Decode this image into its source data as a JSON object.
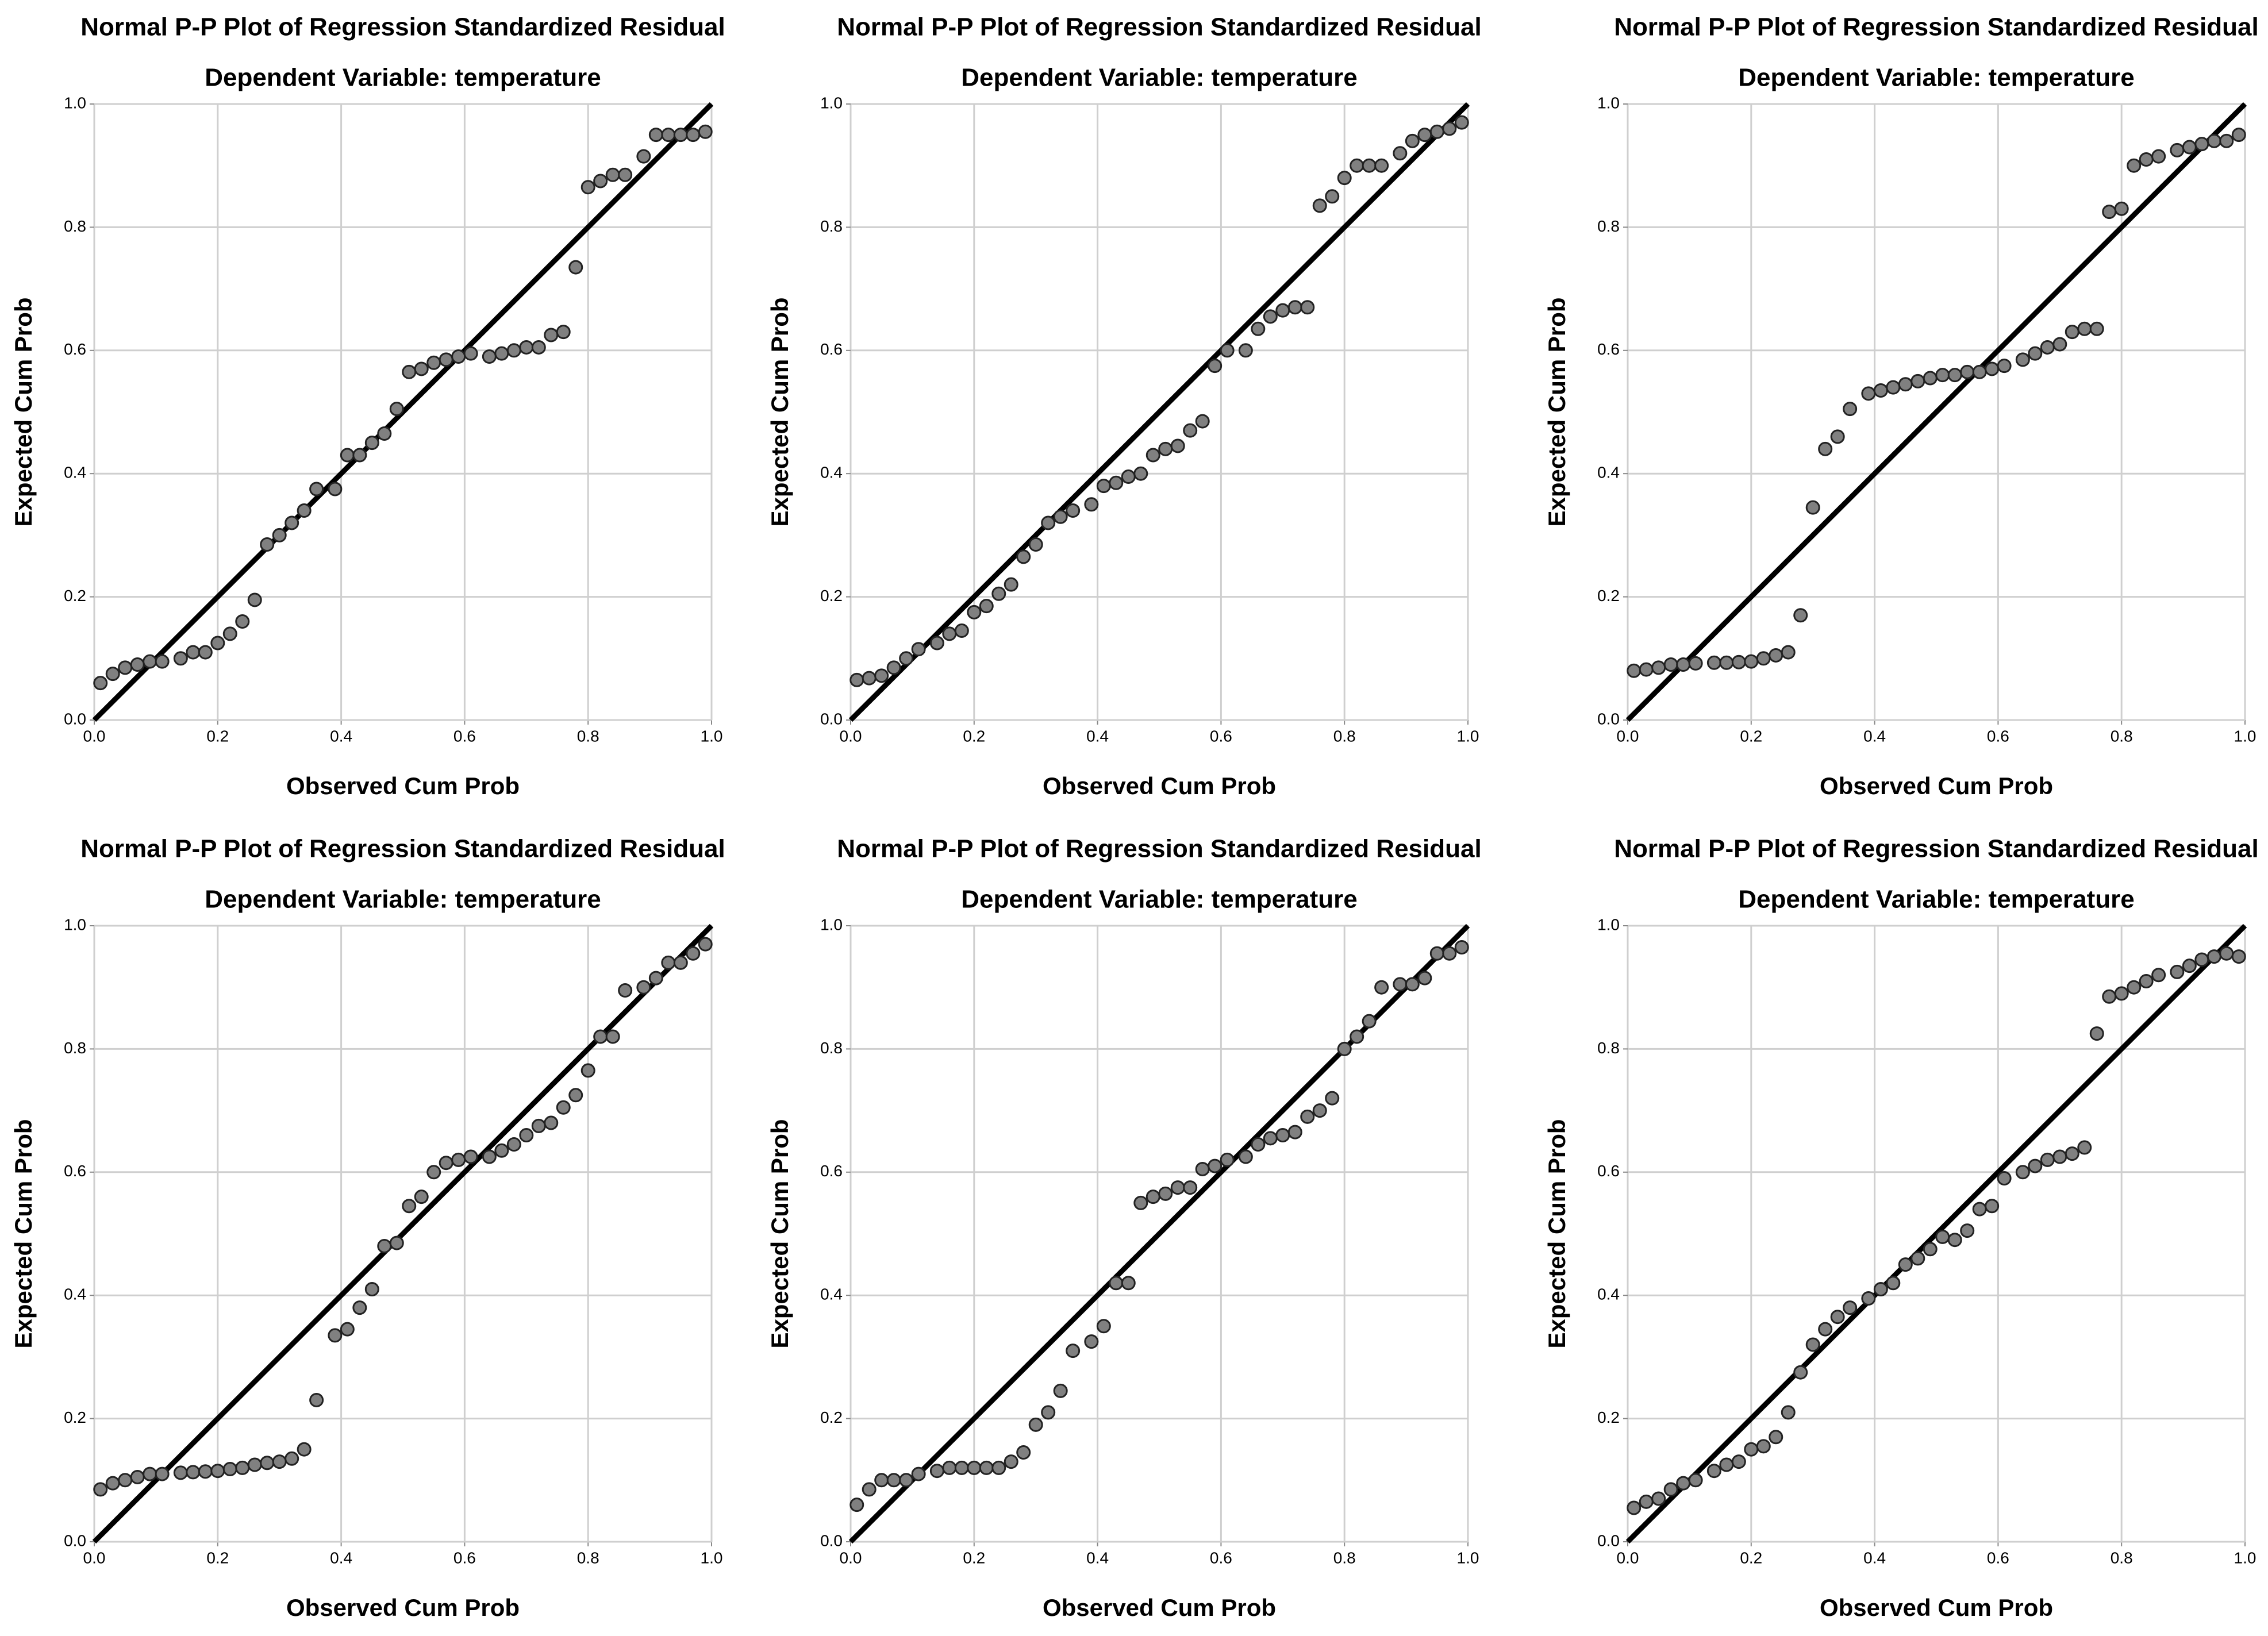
{
  "chart_data": [
    {
      "type": "scatter",
      "title": "Normal P-P Plot of Regression Standardized Residual",
      "subtitle": "Dependent Variable: temperature",
      "x_label": "Observed Cum Prob",
      "y_label": "Expected Cum Prob",
      "color": "#808080",
      "grid": true,
      "xlim": [
        0,
        1
      ],
      "ylim": [
        0,
        1
      ],
      "xticks": [
        {
          "value": 0,
          "label": "0.0"
        },
        0.2,
        0.4,
        0.6,
        0.8,
        {
          "value": 1,
          "label": "1.0"
        }
      ],
      "yticks": [
        {
          "value": 0,
          "label": "0.0"
        },
        0.2,
        0.4,
        0.6,
        0.8,
        {
          "value": 1,
          "label": "1.0"
        }
      ],
      "x": [
        0.01,
        0.03,
        0.05,
        0.07,
        0.09,
        0.11,
        0.14,
        0.16,
        0.18,
        0.2,
        0.22,
        0.24,
        0.26,
        0.28,
        0.3,
        0.32,
        0.34,
        0.36,
        0.39,
        0.41,
        0.43,
        0.45,
        0.47,
        0.49,
        0.51,
        0.53,
        0.55,
        0.57,
        0.59,
        0.61,
        0.64,
        0.66,
        0.68,
        0.7,
        0.72,
        0.74,
        0.76,
        0.78,
        0.8,
        0.82,
        0.84,
        0.86,
        0.89,
        0.91,
        0.93,
        0.95,
        0.97,
        0.99
      ],
      "values": [
        0.06,
        0.075,
        0.085,
        0.09,
        0.095,
        0.095,
        0.1,
        0.11,
        0.11,
        0.125,
        0.14,
        0.16,
        0.195,
        0.285,
        0.3,
        0.32,
        0.34,
        0.375,
        0.375,
        0.43,
        0.43,
        0.45,
        0.465,
        0.505,
        0.565,
        0.57,
        0.58,
        0.585,
        0.59,
        0.595,
        0.59,
        0.595,
        0.6,
        0.605,
        0.605,
        0.625,
        0.63,
        0.735,
        0.865,
        0.875,
        0.885,
        0.885,
        0.915,
        0.95,
        0.95,
        0.95,
        0.95,
        0.955
      ]
    },
    {
      "type": "scatter",
      "title": "Normal P-P Plot of Regression Standardized Residual",
      "subtitle": "Dependent Variable: temperature",
      "x_label": "Observed Cum Prob",
      "y_label": "Expected Cum Prob",
      "color": "#808080",
      "grid": true,
      "xlim": [
        0,
        1
      ],
      "ylim": [
        0,
        1
      ],
      "xticks": [
        {
          "value": 0,
          "label": "0.0"
        },
        0.2,
        0.4,
        0.6,
        0.8,
        {
          "value": 1,
          "label": "1.0"
        }
      ],
      "yticks": [
        {
          "value": 0,
          "label": "0.0"
        },
        0.2,
        0.4,
        0.6,
        0.8,
        {
          "value": 1,
          "label": "1.0"
        }
      ],
      "x": [
        0.01,
        0.03,
        0.05,
        0.07,
        0.09,
        0.11,
        0.14,
        0.16,
        0.18,
        0.2,
        0.22,
        0.24,
        0.26,
        0.28,
        0.3,
        0.32,
        0.34,
        0.36,
        0.39,
        0.41,
        0.43,
        0.45,
        0.47,
        0.49,
        0.51,
        0.53,
        0.55,
        0.57,
        0.59,
        0.61,
        0.64,
        0.66,
        0.68,
        0.7,
        0.72,
        0.74,
        0.76,
        0.78,
        0.8,
        0.82,
        0.84,
        0.86,
        0.89,
        0.91,
        0.93,
        0.95,
        0.97,
        0.99
      ],
      "values": [
        0.065,
        0.068,
        0.072,
        0.085,
        0.1,
        0.115,
        0.125,
        0.14,
        0.145,
        0.175,
        0.185,
        0.205,
        0.22,
        0.265,
        0.285,
        0.32,
        0.33,
        0.34,
        0.35,
        0.38,
        0.385,
        0.395,
        0.4,
        0.43,
        0.44,
        0.445,
        0.47,
        0.485,
        0.575,
        0.6,
        0.6,
        0.635,
        0.655,
        0.665,
        0.67,
        0.67,
        0.835,
        0.85,
        0.88,
        0.9,
        0.9,
        0.9,
        0.92,
        0.94,
        0.95,
        0.955,
        0.96,
        0.97
      ]
    },
    {
      "type": "scatter",
      "title": "Normal P-P Plot of Regression Standardized Residual",
      "subtitle": "Dependent Variable: temperature",
      "x_label": "Observed Cum Prob",
      "y_label": "Expected Cum Prob",
      "color": "#808080",
      "grid": true,
      "xlim": [
        0,
        1
      ],
      "ylim": [
        0,
        1
      ],
      "xticks": [
        {
          "value": 0,
          "label": "0.0"
        },
        0.2,
        0.4,
        0.6,
        0.8,
        {
          "value": 1,
          "label": "1.0"
        }
      ],
      "yticks": [
        {
          "value": 0,
          "label": "0.0"
        },
        0.2,
        0.4,
        0.6,
        0.8,
        {
          "value": 1,
          "label": "1.0"
        }
      ],
      "x": [
        0.01,
        0.03,
        0.05,
        0.07,
        0.09,
        0.11,
        0.14,
        0.16,
        0.18,
        0.2,
        0.22,
        0.24,
        0.26,
        0.28,
        0.3,
        0.32,
        0.34,
        0.36,
        0.39,
        0.41,
        0.43,
        0.45,
        0.47,
        0.49,
        0.51,
        0.53,
        0.55,
        0.57,
        0.59,
        0.61,
        0.64,
        0.66,
        0.68,
        0.7,
        0.72,
        0.74,
        0.76,
        0.78,
        0.8,
        0.82,
        0.84,
        0.86,
        0.89,
        0.91,
        0.93,
        0.95,
        0.97,
        0.99
      ],
      "values": [
        0.08,
        0.082,
        0.085,
        0.09,
        0.09,
        0.092,
        0.093,
        0.093,
        0.094,
        0.095,
        0.1,
        0.105,
        0.11,
        0.17,
        0.345,
        0.44,
        0.46,
        0.505,
        0.53,
        0.535,
        0.54,
        0.545,
        0.55,
        0.555,
        0.56,
        0.56,
        0.565,
        0.565,
        0.57,
        0.575,
        0.585,
        0.595,
        0.605,
        0.61,
        0.63,
        0.635,
        0.635,
        0.825,
        0.83,
        0.9,
        0.91,
        0.915,
        0.925,
        0.93,
        0.935,
        0.94,
        0.94,
        0.95
      ]
    },
    {
      "type": "scatter",
      "title": "Normal P-P Plot of Regression Standardized Residual",
      "subtitle": "Dependent Variable: temperature",
      "x_label": "Observed Cum Prob",
      "y_label": "Expected Cum Prob",
      "color": "#808080",
      "grid": true,
      "xlim": [
        0,
        1
      ],
      "ylim": [
        0,
        1
      ],
      "xticks": [
        {
          "value": 0,
          "label": "0.0"
        },
        0.2,
        0.4,
        0.6,
        0.8,
        {
          "value": 1,
          "label": "1.0"
        }
      ],
      "yticks": [
        {
          "value": 0,
          "label": "0.0"
        },
        0.2,
        0.4,
        0.6,
        0.8,
        {
          "value": 1,
          "label": "1.0"
        }
      ],
      "x": [
        0.01,
        0.03,
        0.05,
        0.07,
        0.09,
        0.11,
        0.14,
        0.16,
        0.18,
        0.2,
        0.22,
        0.24,
        0.26,
        0.28,
        0.3,
        0.32,
        0.34,
        0.36,
        0.39,
        0.41,
        0.43,
        0.45,
        0.47,
        0.49,
        0.51,
        0.53,
        0.55,
        0.57,
        0.59,
        0.61,
        0.64,
        0.66,
        0.68,
        0.7,
        0.72,
        0.74,
        0.76,
        0.78,
        0.8,
        0.82,
        0.84,
        0.86,
        0.89,
        0.91,
        0.93,
        0.95,
        0.97,
        0.99
      ],
      "values": [
        0.085,
        0.095,
        0.1,
        0.105,
        0.11,
        0.11,
        0.112,
        0.113,
        0.114,
        0.115,
        0.118,
        0.12,
        0.125,
        0.128,
        0.13,
        0.135,
        0.15,
        0.23,
        0.335,
        0.345,
        0.38,
        0.41,
        0.48,
        0.485,
        0.545,
        0.56,
        0.6,
        0.615,
        0.62,
        0.625,
        0.625,
        0.635,
        0.645,
        0.66,
        0.675,
        0.68,
        0.705,
        0.725,
        0.765,
        0.82,
        0.82,
        0.895,
        0.9,
        0.915,
        0.94,
        0.94,
        0.955,
        0.97
      ]
    },
    {
      "type": "scatter",
      "title": "Normal P-P Plot of Regression Standardized Residual",
      "subtitle": "Dependent Variable: temperature",
      "x_label": "Observed Cum Prob",
      "y_label": "Expected Cum Prob",
      "color": "#808080",
      "grid": true,
      "xlim": [
        0,
        1
      ],
      "ylim": [
        0,
        1
      ],
      "xticks": [
        {
          "value": 0,
          "label": "0.0"
        },
        0.2,
        0.4,
        0.6,
        0.8,
        {
          "value": 1,
          "label": "1.0"
        }
      ],
      "yticks": [
        {
          "value": 0,
          "label": "0.0"
        },
        0.2,
        0.4,
        0.6,
        0.8,
        {
          "value": 1,
          "label": "1.0"
        }
      ],
      "x": [
        0.01,
        0.03,
        0.05,
        0.07,
        0.09,
        0.11,
        0.14,
        0.16,
        0.18,
        0.2,
        0.22,
        0.24,
        0.26,
        0.28,
        0.3,
        0.32,
        0.34,
        0.36,
        0.39,
        0.41,
        0.43,
        0.45,
        0.47,
        0.49,
        0.51,
        0.53,
        0.55,
        0.57,
        0.59,
        0.61,
        0.64,
        0.66,
        0.68,
        0.7,
        0.72,
        0.74,
        0.76,
        0.78,
        0.8,
        0.82,
        0.84,
        0.86,
        0.89,
        0.91,
        0.93,
        0.95,
        0.97,
        0.99
      ],
      "values": [
        0.06,
        0.085,
        0.1,
        0.1,
        0.1,
        0.11,
        0.115,
        0.12,
        0.12,
        0.12,
        0.12,
        0.12,
        0.13,
        0.145,
        0.19,
        0.21,
        0.245,
        0.31,
        0.325,
        0.35,
        0.42,
        0.42,
        0.55,
        0.56,
        0.565,
        0.575,
        0.575,
        0.605,
        0.61,
        0.62,
        0.625,
        0.645,
        0.655,
        0.66,
        0.665,
        0.69,
        0.7,
        0.72,
        0.8,
        0.82,
        0.845,
        0.9,
        0.905,
        0.905,
        0.915,
        0.955,
        0.955,
        0.965
      ]
    },
    {
      "type": "scatter",
      "title": "Normal P-P Plot of Regression Standardized Residual",
      "subtitle": "Dependent Variable: temperature",
      "x_label": "Observed Cum Prob",
      "y_label": "Expected Cum Prob",
      "color": "#808080",
      "grid": true,
      "xlim": [
        0,
        1
      ],
      "ylim": [
        0,
        1
      ],
      "xticks": [
        {
          "value": 0,
          "label": "0.0"
        },
        0.2,
        0.4,
        0.6,
        0.8,
        {
          "value": 1,
          "label": "1.0"
        }
      ],
      "yticks": [
        {
          "value": 0,
          "label": "0.0"
        },
        0.2,
        0.4,
        0.6,
        0.8,
        {
          "value": 1,
          "label": "1.0"
        }
      ],
      "x": [
        0.01,
        0.03,
        0.05,
        0.07,
        0.09,
        0.11,
        0.14,
        0.16,
        0.18,
        0.2,
        0.22,
        0.24,
        0.26,
        0.28,
        0.3,
        0.32,
        0.34,
        0.36,
        0.39,
        0.41,
        0.43,
        0.45,
        0.47,
        0.49,
        0.51,
        0.53,
        0.55,
        0.57,
        0.59,
        0.61,
        0.64,
        0.66,
        0.68,
        0.7,
        0.72,
        0.74,
        0.76,
        0.78,
        0.8,
        0.82,
        0.84,
        0.86,
        0.89,
        0.91,
        0.93,
        0.95,
        0.97,
        0.99
      ],
      "values": [
        0.055,
        0.065,
        0.07,
        0.085,
        0.095,
        0.1,
        0.115,
        0.125,
        0.13,
        0.15,
        0.155,
        0.17,
        0.21,
        0.275,
        0.32,
        0.345,
        0.365,
        0.38,
        0.395,
        0.41,
        0.42,
        0.45,
        0.46,
        0.475,
        0.495,
        0.49,
        0.505,
        0.54,
        0.545,
        0.59,
        0.6,
        0.61,
        0.62,
        0.625,
        0.63,
        0.64,
        0.825,
        0.885,
        0.89,
        0.9,
        0.91,
        0.92,
        0.925,
        0.935,
        0.945,
        0.95,
        0.955,
        0.95
      ]
    }
  ]
}
